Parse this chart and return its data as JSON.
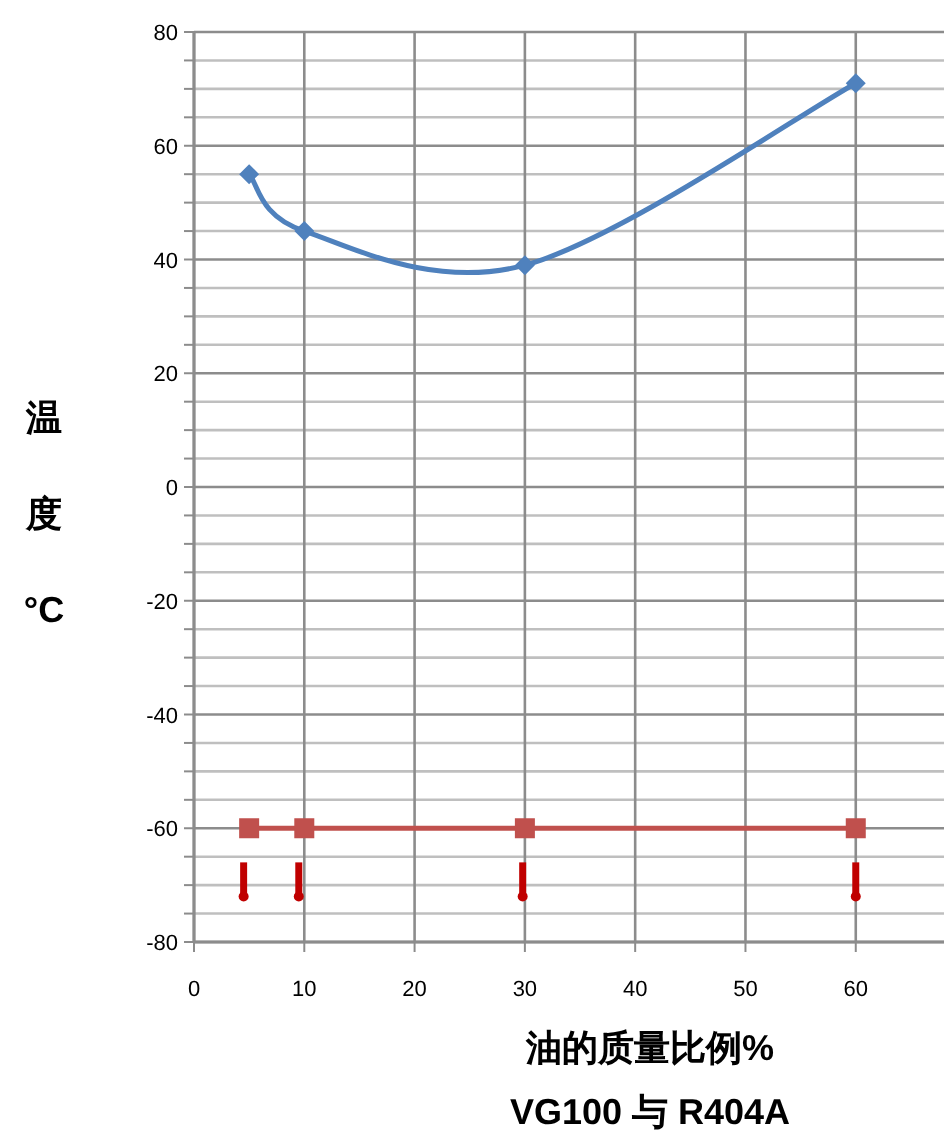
{
  "chart_data": {
    "type": "line",
    "xlabel": "油的质量比例%",
    "ylabel": "温度°C",
    "annotations": [
      "VG100 与 R404A"
    ],
    "xlim": [
      0,
      68
    ],
    "ylim": [
      -80,
      80
    ],
    "xticks": [
      0,
      10,
      20,
      30,
      40,
      50,
      60
    ],
    "yticks": [
      -80,
      {
        "value": -75,
        "label": null
      },
      {
        "value": -70,
        "label": null
      },
      {
        "value": -65,
        "label": null
      },
      -60,
      {
        "value": -55,
        "label": null
      },
      {
        "value": -50,
        "label": null
      },
      {
        "value": -45,
        "label": null
      },
      -40,
      {
        "value": -35,
        "label": null
      },
      {
        "value": -30,
        "label": null
      },
      {
        "value": -25,
        "label": null
      },
      -20,
      {
        "value": -15,
        "label": null
      },
      {
        "value": -10,
        "label": null
      },
      {
        "value": -5,
        "label": null
      },
      0,
      {
        "value": 5,
        "label": null
      },
      {
        "value": 10,
        "label": null
      },
      {
        "value": 15,
        "label": null
      },
      20,
      {
        "value": 25,
        "label": null
      },
      {
        "value": 30,
        "label": null
      },
      {
        "value": 35,
        "label": null
      },
      40,
      {
        "value": 45,
        "label": null
      },
      {
        "value": 50,
        "label": null
      },
      {
        "value": 55,
        "label": null
      },
      60,
      {
        "value": 65,
        "label": null
      },
      {
        "value": 70,
        "label": null
      },
      {
        "value": 75,
        "label": null
      },
      80
    ],
    "grid": true,
    "series": [
      {
        "type": "line",
        "color": "#4f81bd",
        "marker": "diamond",
        "x": [
          5,
          10,
          30,
          60
        ],
        "values": [
          55,
          45,
          39,
          71
        ]
      },
      {
        "type": "line",
        "color": "#c0504d",
        "marker": "square",
        "x": [
          5,
          10,
          30,
          60
        ],
        "values": [
          -60,
          -60,
          -60,
          -60
        ]
      },
      {
        "type": "scatter",
        "color": "#c00000",
        "marker": "circle",
        "x": [
          4.5,
          9.5,
          29.8,
          60
        ],
        "values": [
          -72,
          -72,
          -72,
          -72
        ],
        "errors": [
          [
            -72,
            -66
          ],
          [
            -72,
            -66
          ],
          [
            -72,
            -66
          ],
          [
            -72,
            -66
          ]
        ]
      }
    ]
  }
}
